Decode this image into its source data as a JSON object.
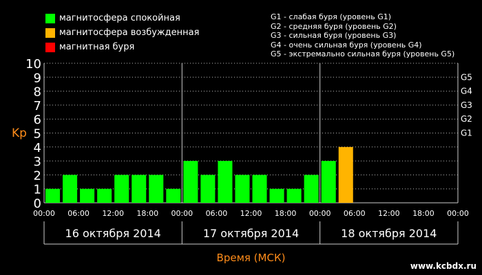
{
  "legend": {
    "items": [
      {
        "label": "магнитосфера спокойная",
        "color": "#00ff00"
      },
      {
        "label": "магнитосфера возбужденная",
        "color": "#ffb400"
      },
      {
        "label": "магнитная буря",
        "color": "#ff0000"
      }
    ]
  },
  "storm_legend": [
    "G1 - слабая буря (уровень G1)",
    "G2 - средняя буря (уровень G2)",
    "G3 - сильная буря (уровень G3)",
    "G4 - очень сильная буря (уровень G4)",
    "G5 - экстремально сильная буря (уровень G5)"
  ],
  "watermark": "www.kcbdx.ru",
  "chart_data": {
    "type": "bar",
    "ylabel": "Kp",
    "xlabel": "Время (МСК)",
    "ylim": [
      0,
      10
    ],
    "yticks": [
      "0",
      "1",
      "2",
      "3",
      "4",
      "5",
      "6",
      "7",
      "8",
      "9",
      "10"
    ],
    "g_levels": [
      {
        "label": "G1",
        "value": 5
      },
      {
        "label": "G2",
        "value": 6
      },
      {
        "label": "G3",
        "value": 7
      },
      {
        "label": "G4",
        "value": 8
      },
      {
        "label": "G5",
        "value": 9
      }
    ],
    "time_ticks": [
      "00:00",
      "06:00",
      "12:00",
      "18:00",
      "00:00",
      "06:00",
      "12:00",
      "18:00",
      "00:00",
      "06:00",
      "12:00",
      "18:00",
      "00:00"
    ],
    "days": [
      "16 октября 2014",
      "17 октября 2014",
      "18 октября 2014"
    ],
    "slots": 24,
    "values": [
      1,
      2,
      1,
      1,
      2,
      2,
      2,
      1,
      3,
      2,
      3,
      2,
      2,
      1,
      1,
      2,
      3,
      4
    ],
    "colors": [
      "#00ff00",
      "#00ff00",
      "#00ff00",
      "#00ff00",
      "#00ff00",
      "#00ff00",
      "#00ff00",
      "#00ff00",
      "#00ff00",
      "#00ff00",
      "#00ff00",
      "#00ff00",
      "#00ff00",
      "#00ff00",
      "#00ff00",
      "#00ff00",
      "#00ff00",
      "#ffb400"
    ]
  }
}
